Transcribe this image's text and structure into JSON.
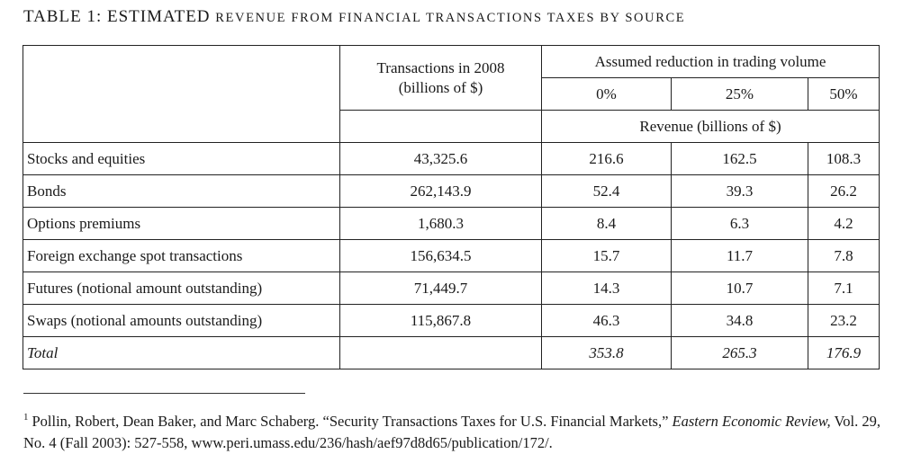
{
  "title": {
    "prefix": "TABLE 1: ESTIMATED ",
    "rest": "REVENUE FROM FINANCIAL TRANSACTIONS TAXES BY SOURCE"
  },
  "table": {
    "header": {
      "transactions": "Transactions in 2008",
      "transactions_unit": "(billions of $)",
      "assumed_reduction": "Assumed reduction in trading volume",
      "scenarios": [
        "0%",
        "25%",
        "50%"
      ],
      "revenue_unit": "Revenue (billions of $)"
    },
    "rows": [
      {
        "label": "Stocks and equities",
        "transactions": "43,325.6",
        "r0": "216.6",
        "r25": "162.5",
        "r50": "108.3"
      },
      {
        "label": "Bonds",
        "transactions": "262,143.9",
        "r0": "52.4",
        "r25": "39.3",
        "r50": "26.2"
      },
      {
        "label": "Options premiums",
        "transactions": "1,680.3",
        "r0": "8.4",
        "r25": "6.3",
        "r50": "4.2"
      },
      {
        "label": "Foreign exchange spot transactions",
        "transactions": "156,634.5",
        "r0": "15.7",
        "r25": "11.7",
        "r50": "7.8"
      },
      {
        "label": "Futures (notional amount outstanding)",
        "transactions": "71,449.7",
        "r0": "14.3",
        "r25": "10.7",
        "r50": "7.1"
      },
      {
        "label": "Swaps (notional amounts outstanding)",
        "transactions": "115,867.8",
        "r0": "46.3",
        "r25": "34.8",
        "r50": "23.2"
      }
    ],
    "total": {
      "label": "Total",
      "transactions": "",
      "r0": "353.8",
      "r25": "265.3",
      "r50": "176.9"
    }
  },
  "footnote": {
    "marker": "1",
    "text_before": "Pollin, Robert, Dean Baker, and Marc Schaberg. “Security Transactions Taxes for U.S. Financial Markets,” ",
    "journal": "Eastern Economic Review,",
    "text_after": " Vol. 29, No. 4 (Fall 2003): 527-558, www.peri.umass.edu/236/hash/aef97d8d65/publication/172/."
  }
}
